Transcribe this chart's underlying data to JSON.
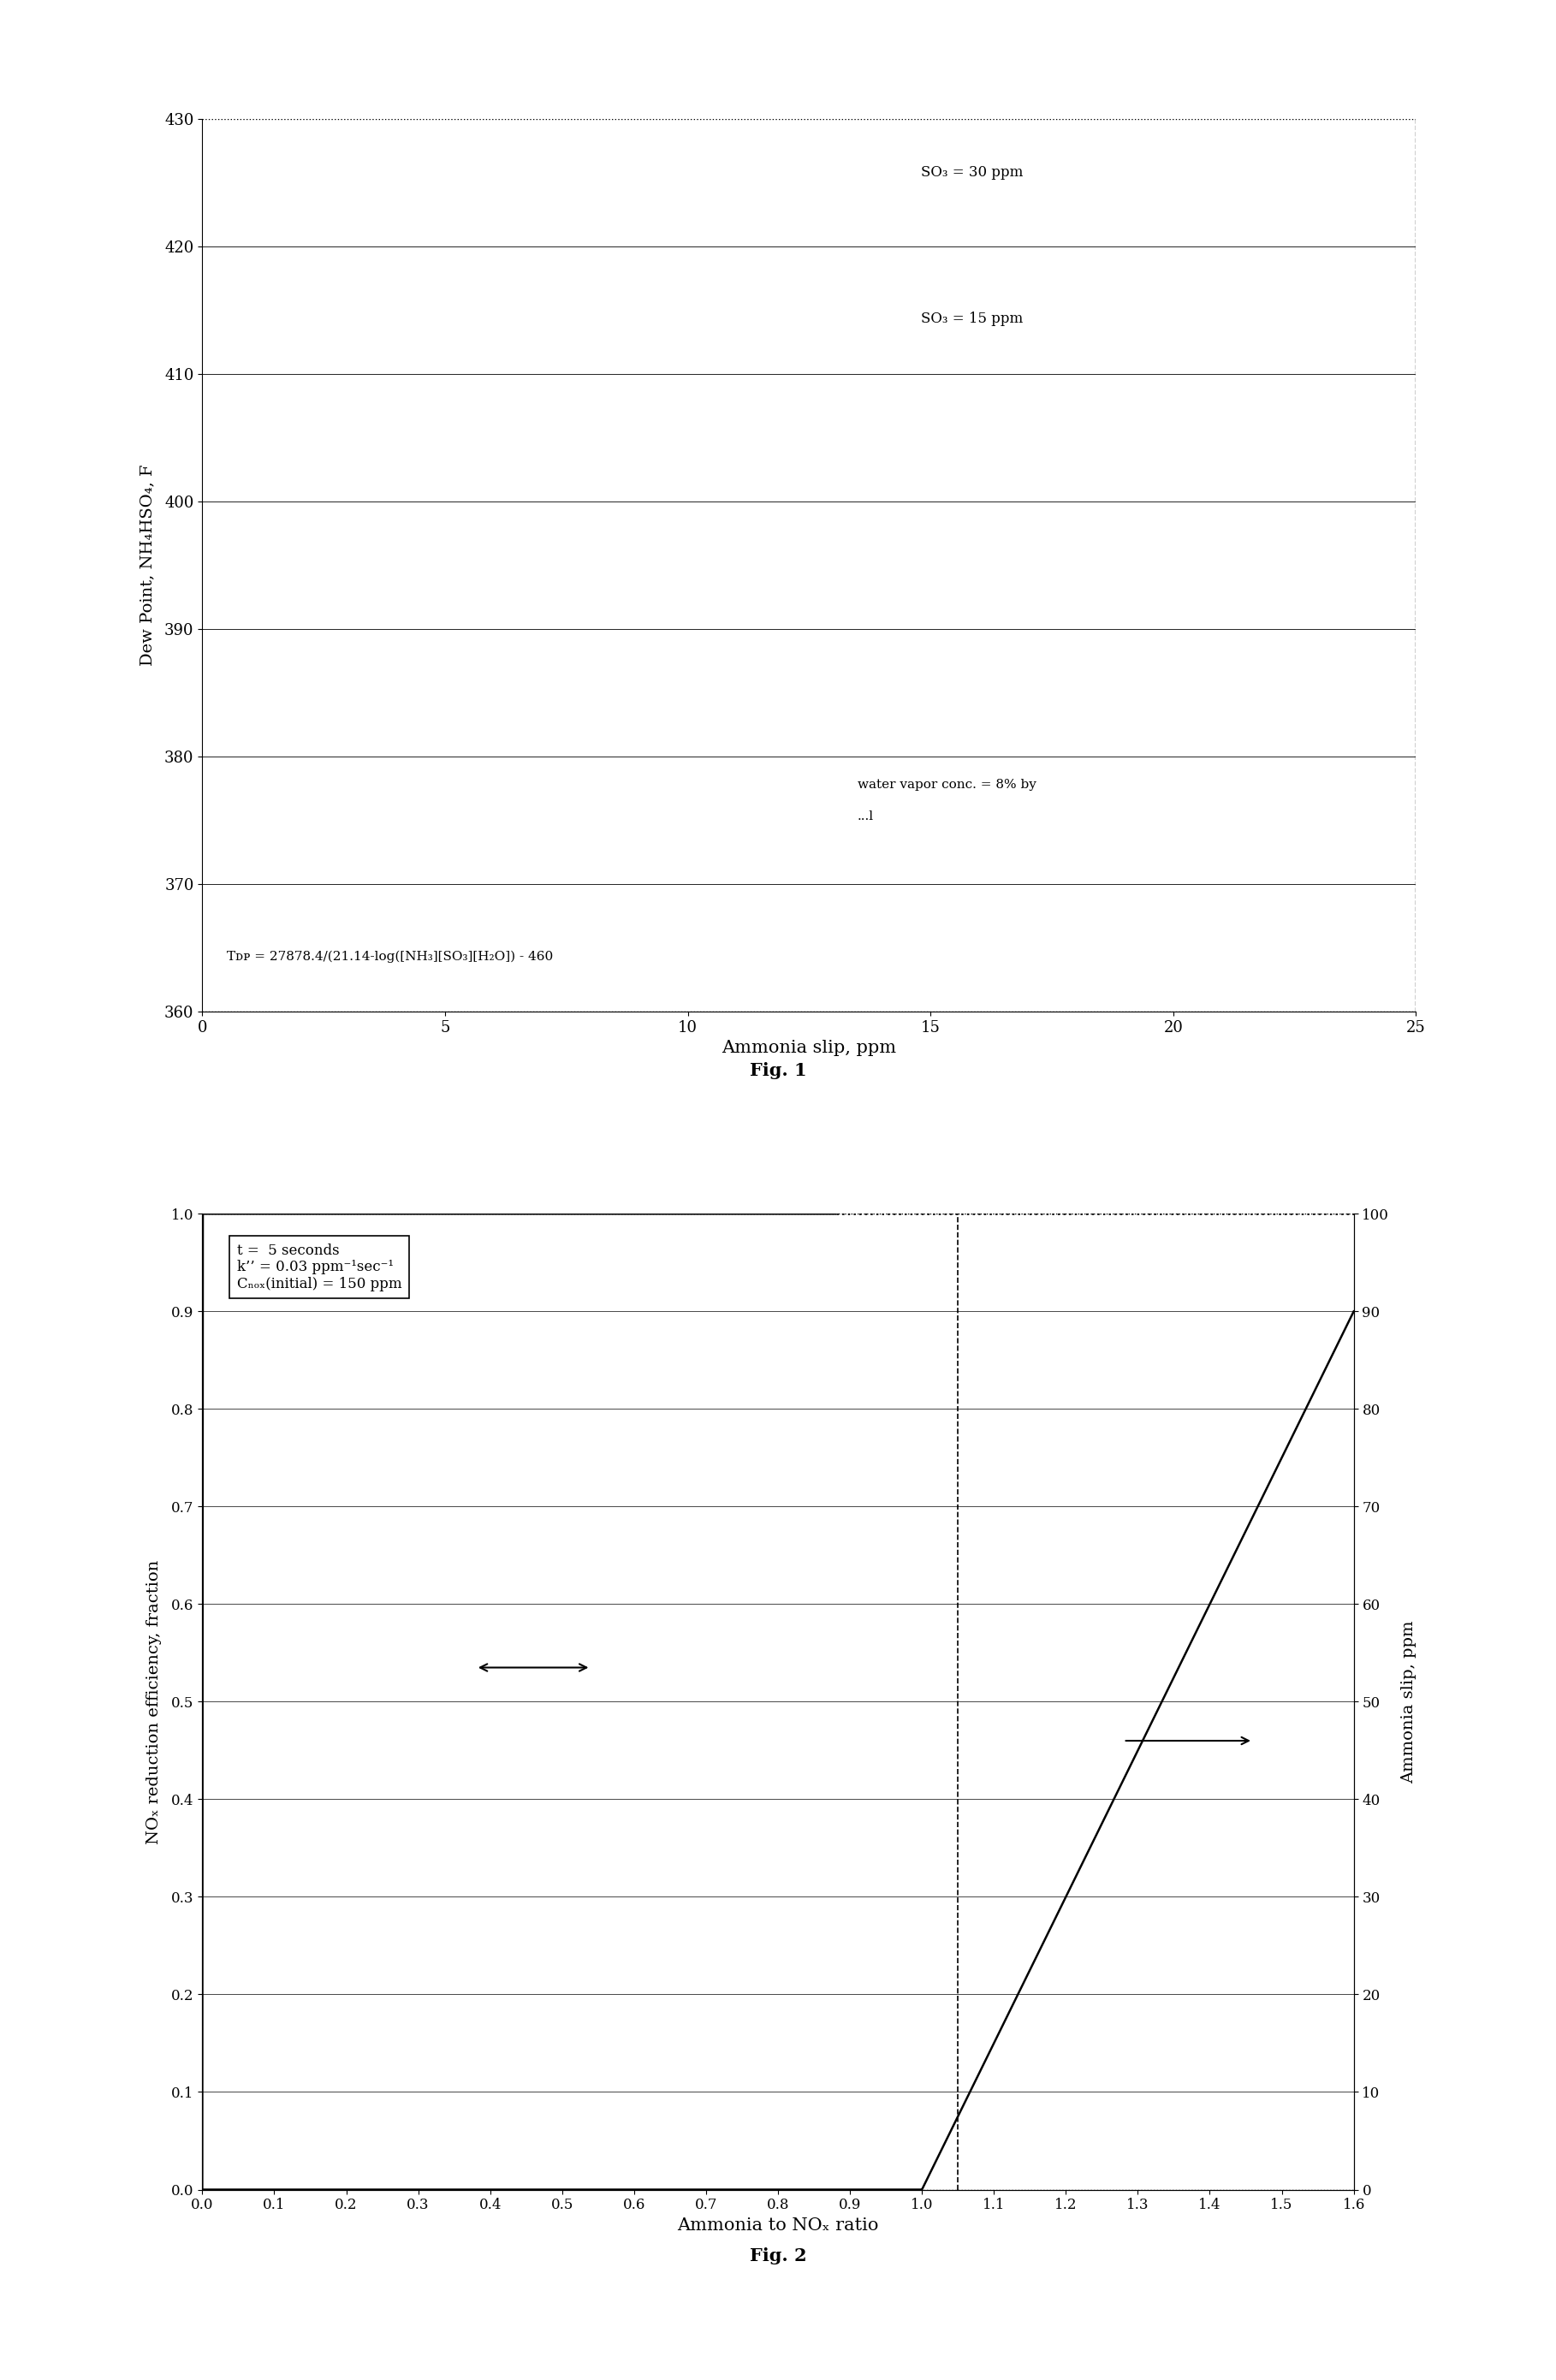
{
  "fig1": {
    "xlabel": "Ammonia slip, ppm",
    "ylabel": "Dew Point, NH₄HSO₄, F",
    "xlim": [
      0,
      25
    ],
    "ylim": [
      360,
      430
    ],
    "xticks": [
      0,
      5,
      10,
      15,
      20,
      25
    ],
    "yticks": [
      360,
      370,
      380,
      390,
      400,
      410,
      420,
      430
    ],
    "label_so3_30": "SO₃ = 30 ppm",
    "label_so3_15": "SO₃ = 15 ppm",
    "annotation_water_line1": "water vapor conc. = 8% by",
    "annotation_water_line2": "...l",
    "annotation_formula": "Tᴅᴘ = 27878.4/(21.14-log([NH₃][SO₃][H₂O]) - 460",
    "fig_label": "Fig. 1",
    "SO3_30": 30,
    "SO3_15": 15,
    "H2O_pct": 8.0
  },
  "fig2": {
    "xlabel": "Ammonia to NOₓ ratio",
    "ylabel_left": "NOₓ reduction efficiency, fraction",
    "ylabel_right": "Ammonia slip, ppm",
    "xlim": [
      0.0,
      1.6
    ],
    "ylim_left": [
      0.0,
      1.0
    ],
    "ylim_right": [
      0,
      100
    ],
    "xticks": [
      0.0,
      0.1,
      0.2,
      0.3,
      0.4,
      0.5,
      0.6,
      0.7,
      0.8,
      0.9,
      1.0,
      1.1,
      1.2,
      1.3,
      1.4,
      1.5,
      1.6
    ],
    "yticks_left": [
      0.0,
      0.1,
      0.2,
      0.3,
      0.4,
      0.5,
      0.6,
      0.7,
      0.8,
      0.9,
      1.0
    ],
    "yticks_right": [
      0,
      10,
      20,
      30,
      40,
      50,
      60,
      70,
      80,
      90,
      100
    ],
    "annotation_line1": "t =  5 seconds",
    "annotation_line2": "k’’ = 0.03 ppm⁻¹sec⁻¹",
    "annotation_line3": "Cₙₒₓ(initial) = 150 ppm",
    "dashed_vline": 1.05,
    "k": 0.03,
    "t": 5,
    "NOx0": 150,
    "fig_label": "Fig. 2"
  }
}
